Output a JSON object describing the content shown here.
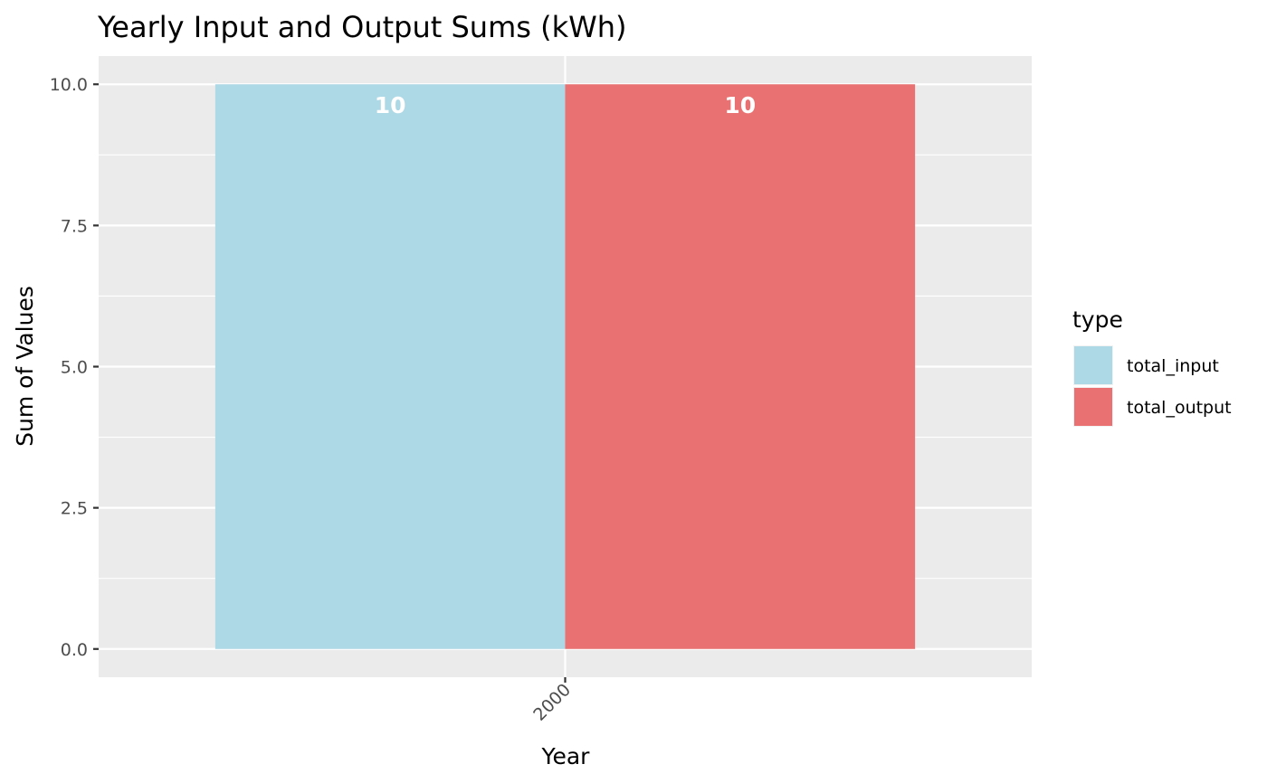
{
  "chart_data": {
    "type": "bar",
    "title": "Yearly Input and Output Sums (kWh)",
    "xlabel": "Year",
    "ylabel": "Sum of Values",
    "categories": [
      "2000"
    ],
    "series": [
      {
        "name": "total_input",
        "values": [
          10
        ],
        "color": "#ADD8E6",
        "value_label": "10"
      },
      {
        "name": "total_output",
        "values": [
          10
        ],
        "color": "#EA7171",
        "value_label": "10"
      }
    ],
    "ylim": [
      -0.5,
      10.5
    ],
    "yticks": [
      0,
      2.5,
      5,
      7.5,
      10
    ],
    "ytick_labels": [
      "0.0",
      "2.5",
      "5.0",
      "7.5",
      "10.0"
    ],
    "legend": {
      "title": "type",
      "position": "right"
    },
    "grid": true,
    "panel_background": "#EBEBEB",
    "x_tick_rotation": "45"
  }
}
